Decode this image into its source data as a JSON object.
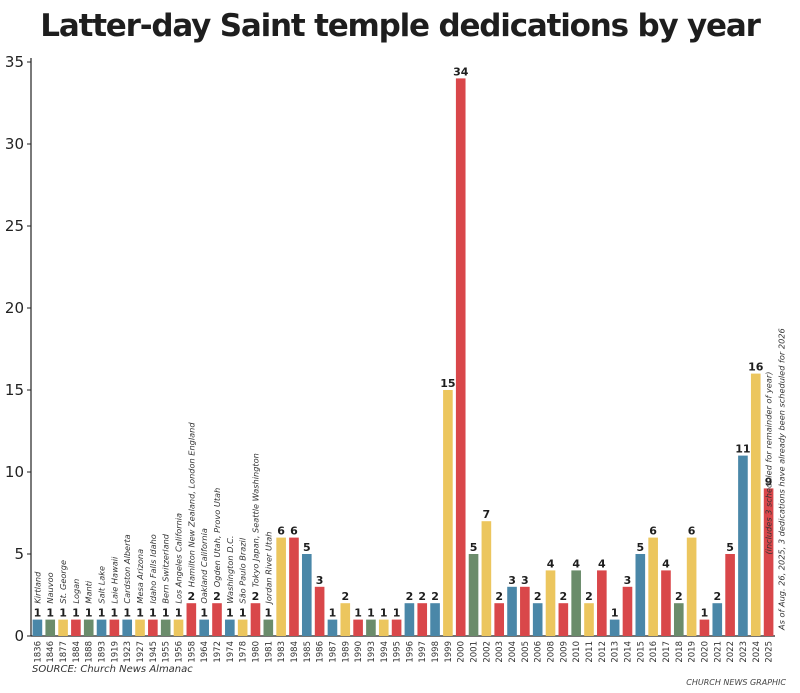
{
  "chart_data": {
    "type": "bar",
    "title": "Latter-day Saint temple dedications by year",
    "source": "SOURCE: Church News Almanac",
    "credit": "CHURCH NEWS GRAPHIC",
    "ylim": [
      0,
      35
    ],
    "yticks": [
      0,
      5,
      10,
      15,
      20,
      25,
      30,
      35
    ],
    "grid": false,
    "colors": {
      "blue": "#4a87a8",
      "green": "#6b8c6b",
      "yellow": "#ecc65e",
      "red": "#d9474a"
    },
    "categories": [
      "1836",
      "1846",
      "1877",
      "1884",
      "1888",
      "1893",
      "1919",
      "1923",
      "1927",
      "1945",
      "1955",
      "1956",
      "1958",
      "1964",
      "1972",
      "1974",
      "1978",
      "1980",
      "1981",
      "1983",
      "1984",
      "1985",
      "1986",
      "1987",
      "1989",
      "1990",
      "1993",
      "1994",
      "1995",
      "1996",
      "1997",
      "1998",
      "1999",
      "2000",
      "2001",
      "2002",
      "2003",
      "2004",
      "2005",
      "2006",
      "2008",
      "2009",
      "2010",
      "2011",
      "2012",
      "2013",
      "2014",
      "2015",
      "2016",
      "2017",
      "2018",
      "2019",
      "2020",
      "2021",
      "2022",
      "2023",
      "2024",
      "2025"
    ],
    "values": [
      1,
      1,
      1,
      1,
      1,
      1,
      1,
      1,
      1,
      1,
      1,
      1,
      2,
      1,
      2,
      1,
      1,
      2,
      1,
      6,
      6,
      5,
      3,
      1,
      2,
      1,
      1,
      1,
      1,
      2,
      2,
      2,
      15,
      34,
      5,
      7,
      2,
      3,
      3,
      2,
      4,
      2,
      4,
      2,
      4,
      1,
      3,
      5,
      6,
      4,
      2,
      6,
      1,
      2,
      5,
      11,
      16,
      9
    ],
    "bar_colors": [
      "blue",
      "green",
      "yellow",
      "red",
      "green",
      "blue",
      "red",
      "blue",
      "yellow",
      "red",
      "green",
      "yellow",
      "red",
      "blue",
      "red",
      "blue",
      "yellow",
      "red",
      "green",
      "yellow",
      "red",
      "blue",
      "red",
      "blue",
      "yellow",
      "red",
      "green",
      "yellow",
      "red",
      "blue",
      "red",
      "blue",
      "yellow",
      "red",
      "green",
      "yellow",
      "red",
      "blue",
      "red",
      "blue",
      "yellow",
      "red",
      "green",
      "yellow",
      "red",
      "blue",
      "red",
      "blue",
      "yellow",
      "red",
      "green",
      "yellow",
      "red",
      "blue",
      "red",
      "blue",
      "yellow",
      "red"
    ],
    "annotations": [
      "Kirtland",
      "Nauvoo",
      "St. George",
      "Logan",
      "Manti",
      "Salt Lake",
      "Laie Hawaii",
      "Cardston Alberta",
      "Mesa Arizona",
      "Idaho Falls Idaho",
      "Bern Switzerland",
      "Los Angeles California",
      "Hamilton New Zealand, London England",
      "Oakland California",
      "Ogden Utah, Provo Utah",
      "Washington D.C.",
      "São Paulo Brazil",
      "Tokyo Japan, Seattle Washington",
      "Jordan River Utah"
    ],
    "note_2024": "(includes 3 scheduled for remainder of year)",
    "note_2025": "As of Aug. 26, 2025, 3 dedications have already been scheduled for 2026"
  }
}
